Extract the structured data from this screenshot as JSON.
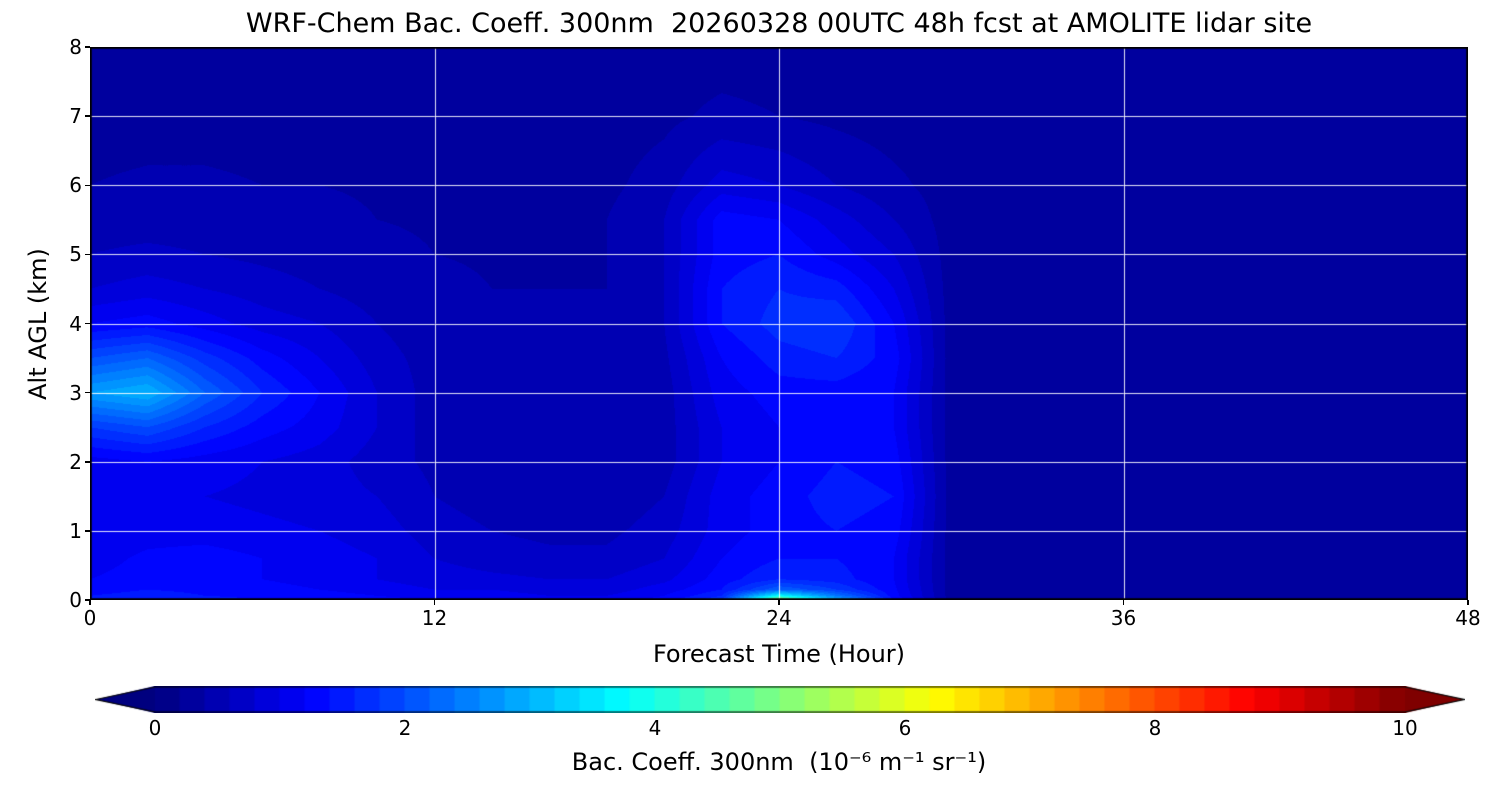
{
  "figure": {
    "title": "WRF-Chem Bac. Coeff. 300nm  20260328 00UTC 48h fcst at AMOLITE lidar site"
  },
  "chart_data": {
    "type": "heatmap",
    "title": "WRF-Chem Bac. Coeff. 300nm  20260328 00UTC 48h fcst at AMOLITE lidar site",
    "xlabel": "Forecast Time (Hour)",
    "ylabel": "Alt AGL (km)",
    "xlim": [
      0,
      48
    ],
    "ylim": [
      0,
      8
    ],
    "xticks": [
      0,
      12,
      24,
      36,
      48
    ],
    "yticks": [
      0,
      1,
      2,
      3,
      4,
      5,
      6,
      7,
      8
    ],
    "grid_x": [
      12,
      24,
      36
    ],
    "grid_y": [
      1,
      2,
      3,
      4,
      5,
      6,
      7
    ],
    "grid_color": "#ffffff",
    "colormap": "jet",
    "vmin": 0,
    "vmax": 10,
    "contour_step": 0.2,
    "colorbar": {
      "ticks": [
        0,
        2,
        4,
        6,
        8,
        10
      ],
      "label": "Bac. Coeff. 300nm  (10⁻⁶ m⁻¹ sr⁻¹)",
      "extend": "both"
    },
    "x": [
      0,
      2,
      4,
      6,
      8,
      10,
      12,
      14,
      16,
      18,
      20,
      22,
      24,
      26,
      28,
      30,
      32,
      34,
      36,
      38,
      40,
      42,
      44,
      46,
      48
    ],
    "y": [
      0.0,
      0.06,
      0.15,
      0.3,
      0.6,
      1.0,
      1.5,
      2.0,
      2.5,
      3.0,
      3.5,
      4.0,
      4.5,
      5.0,
      5.5,
      6.0,
      7.0,
      8.0
    ],
    "values": [
      [
        1.5,
        1.6,
        1.5,
        1.4,
        1.4,
        1.3,
        1.2,
        1.2,
        1.1,
        1.1,
        1.3,
        1.8,
        5.6,
        3.2,
        1.4,
        0.3,
        0.3,
        0.3,
        0.3,
        0.3,
        0.3,
        0.3,
        0.3,
        0.3,
        0.3
      ],
      [
        1.4,
        1.5,
        1.4,
        1.35,
        1.3,
        1.2,
        1.1,
        1.1,
        1.0,
        1.0,
        1.2,
        1.6,
        3.8,
        2.4,
        1.3,
        0.3,
        0.3,
        0.3,
        0.3,
        0.3,
        0.3,
        0.3,
        0.3,
        0.3,
        0.3
      ],
      [
        1.3,
        1.4,
        1.35,
        1.3,
        1.2,
        1.1,
        1.0,
        1.0,
        0.9,
        0.9,
        1.1,
        1.4,
        2.2,
        1.8,
        1.25,
        0.3,
        0.3,
        0.3,
        0.3,
        0.3,
        0.3,
        0.3,
        0.3,
        0.3,
        0.3
      ],
      [
        1.2,
        1.3,
        1.3,
        1.2,
        1.1,
        1.0,
        0.9,
        0.85,
        0.8,
        0.8,
        0.95,
        1.3,
        1.6,
        1.5,
        1.2,
        0.3,
        0.3,
        0.3,
        0.3,
        0.3,
        0.3,
        0.3,
        0.3,
        0.3,
        0.3
      ],
      [
        1.1,
        1.25,
        1.3,
        1.2,
        1.1,
        1.0,
        0.8,
        0.7,
        0.65,
        0.65,
        0.8,
        1.2,
        1.4,
        1.4,
        1.2,
        0.3,
        0.3,
        0.3,
        0.3,
        0.3,
        0.3,
        0.3,
        0.3,
        0.3,
        0.3
      ],
      [
        1.0,
        1.1,
        1.1,
        1.05,
        1.0,
        0.9,
        0.7,
        0.6,
        0.55,
        0.55,
        0.7,
        1.1,
        1.3,
        1.4,
        1.3,
        0.3,
        0.3,
        0.3,
        0.3,
        0.3,
        0.3,
        0.3,
        0.3,
        0.3,
        0.3
      ],
      [
        1.0,
        1.05,
        1.0,
        0.95,
        0.9,
        0.8,
        0.6,
        0.5,
        0.45,
        0.45,
        0.6,
        1.1,
        1.3,
        1.5,
        1.4,
        0.3,
        0.3,
        0.3,
        0.3,
        0.3,
        0.3,
        0.3,
        0.3,
        0.3,
        0.3
      ],
      [
        1.1,
        1.2,
        1.1,
        1.0,
        0.9,
        0.7,
        0.55,
        0.45,
        0.4,
        0.4,
        0.5,
        1.0,
        1.2,
        1.4,
        1.3,
        0.3,
        0.3,
        0.3,
        0.3,
        0.3,
        0.3,
        0.3,
        0.3,
        0.3,
        0.3
      ],
      [
        1.8,
        2.0,
        1.6,
        1.3,
        1.1,
        0.8,
        0.5,
        0.45,
        0.4,
        0.4,
        0.5,
        1.0,
        1.2,
        1.3,
        1.2,
        0.3,
        0.3,
        0.3,
        0.3,
        0.3,
        0.3,
        0.3,
        0.3,
        0.3,
        0.3
      ],
      [
        2.8,
        3.0,
        2.2,
        1.6,
        1.2,
        0.8,
        0.5,
        0.45,
        0.4,
        0.4,
        0.5,
        1.1,
        1.3,
        1.3,
        1.2,
        0.3,
        0.3,
        0.3,
        0.3,
        0.3,
        0.3,
        0.3,
        0.3,
        0.3,
        0.3
      ],
      [
        2.0,
        2.2,
        1.7,
        1.3,
        1.0,
        0.7,
        0.5,
        0.45,
        0.4,
        0.4,
        0.55,
        1.2,
        1.5,
        1.6,
        1.3,
        0.3,
        0.3,
        0.3,
        0.3,
        0.3,
        0.3,
        0.3,
        0.3,
        0.3,
        0.3
      ],
      [
        1.2,
        1.3,
        1.1,
        0.9,
        0.8,
        0.6,
        0.45,
        0.4,
        0.4,
        0.4,
        0.6,
        1.4,
        1.7,
        1.8,
        1.2,
        0.3,
        0.3,
        0.3,
        0.3,
        0.3,
        0.3,
        0.3,
        0.3,
        0.3,
        0.3
      ],
      [
        0.8,
        0.9,
        0.8,
        0.7,
        0.6,
        0.5,
        0.45,
        0.4,
        0.4,
        0.4,
        0.6,
        1.4,
        1.6,
        1.5,
        1.0,
        0.3,
        0.3,
        0.3,
        0.3,
        0.3,
        0.3,
        0.3,
        0.3,
        0.3,
        0.3
      ],
      [
        0.6,
        0.65,
        0.6,
        0.55,
        0.5,
        0.45,
        0.4,
        0.38,
        0.38,
        0.4,
        0.6,
        1.3,
        1.4,
        1.1,
        0.8,
        0.3,
        0.3,
        0.3,
        0.3,
        0.3,
        0.3,
        0.3,
        0.3,
        0.3,
        0.3
      ],
      [
        0.5,
        0.5,
        0.5,
        0.45,
        0.45,
        0.4,
        0.38,
        0.35,
        0.35,
        0.4,
        0.6,
        1.3,
        1.2,
        0.9,
        0.6,
        0.3,
        0.3,
        0.3,
        0.3,
        0.3,
        0.3,
        0.3,
        0.3,
        0.3,
        0.3
      ],
      [
        0.4,
        0.42,
        0.42,
        0.4,
        0.4,
        0.38,
        0.35,
        0.33,
        0.33,
        0.35,
        0.5,
        0.9,
        0.8,
        0.6,
        0.45,
        0.3,
        0.3,
        0.3,
        0.3,
        0.3,
        0.3,
        0.3,
        0.3,
        0.3,
        0.3
      ],
      [
        0.35,
        0.35,
        0.35,
        0.35,
        0.35,
        0.33,
        0.3,
        0.3,
        0.3,
        0.3,
        0.35,
        0.45,
        0.4,
        0.35,
        0.3,
        0.28,
        0.28,
        0.28,
        0.28,
        0.28,
        0.28,
        0.28,
        0.28,
        0.28,
        0.28
      ],
      [
        0.3,
        0.3,
        0.3,
        0.3,
        0.3,
        0.3,
        0.3,
        0.3,
        0.3,
        0.3,
        0.3,
        0.3,
        0.3,
        0.3,
        0.3,
        0.3,
        0.3,
        0.3,
        0.3,
        0.3,
        0.3,
        0.3,
        0.3,
        0.3,
        0.3
      ]
    ]
  }
}
